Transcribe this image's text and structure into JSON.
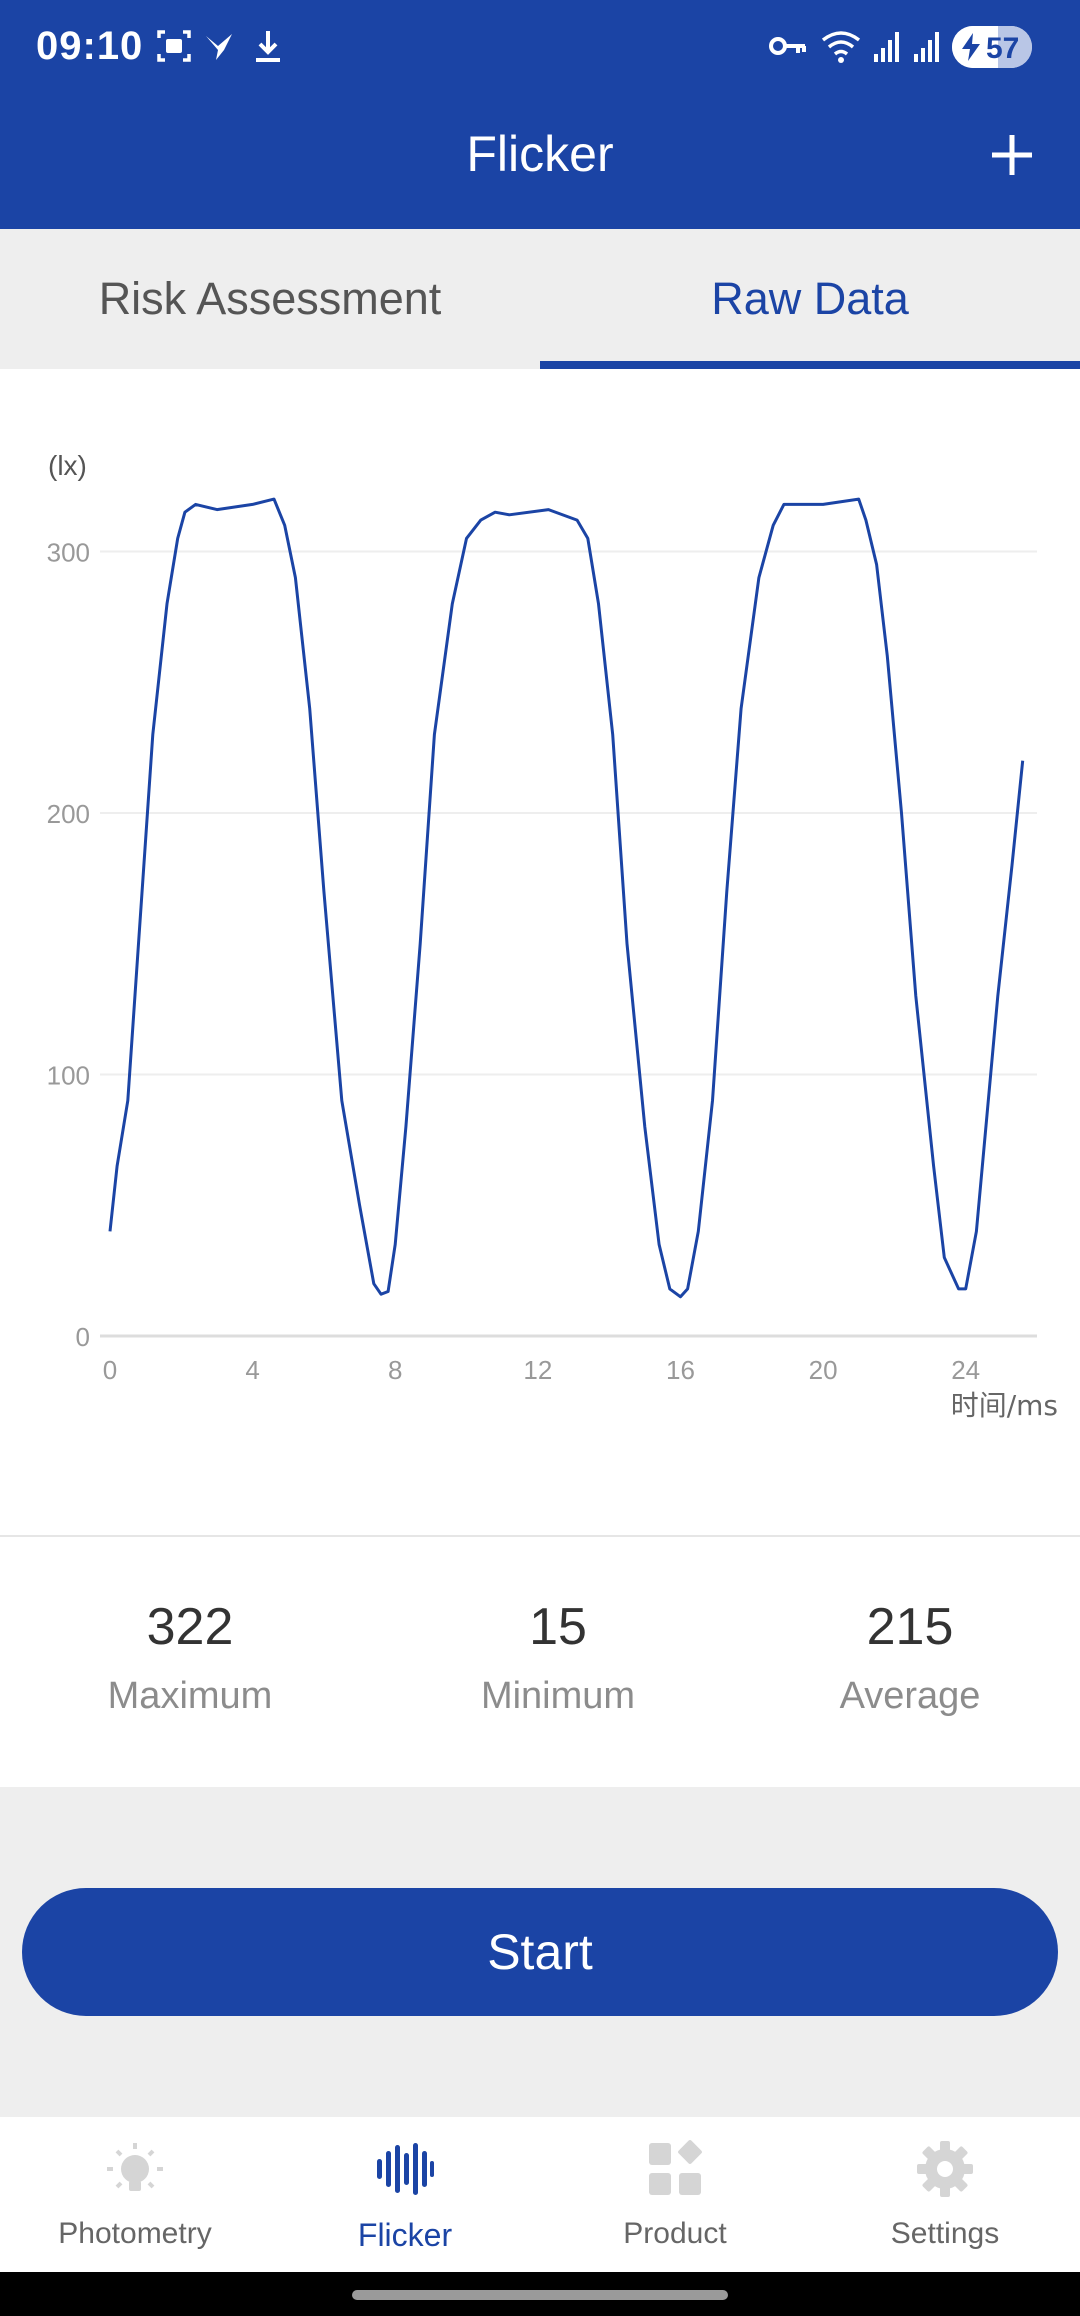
{
  "status_bar": {
    "time": "09:10",
    "battery": "57"
  },
  "app_bar": {
    "title": "Flicker"
  },
  "tabs": [
    {
      "label": "Risk Assessment",
      "active": false
    },
    {
      "label": "Raw Data",
      "active": true
    }
  ],
  "chart_data": {
    "type": "line",
    "ylabel": "(lx)",
    "xlabel": "时间/ms",
    "xlim": [
      0,
      26
    ],
    "ylim": [
      0,
      300
    ],
    "x_ticks": [
      "0",
      "4",
      "8",
      "12",
      "16",
      "20",
      "24"
    ],
    "y_ticks": [
      "0",
      "100",
      "200",
      "300"
    ],
    "grid": true,
    "color": "#1b44a5",
    "series": [
      {
        "x": [
          0,
          0.2,
          0.5,
          0.8,
          1.2,
          1.6,
          1.9,
          2.1,
          2.4,
          3,
          4,
          4.6,
          4.9,
          5.2,
          5.6,
          6,
          6.5,
          7,
          7.4,
          7.6,
          7.8,
          8.0,
          8.3,
          8.7,
          9.1,
          9.6,
          10.0,
          10.4,
          10.8,
          11.2,
          12.3,
          13.1,
          13.4,
          13.7,
          14.1,
          14.5,
          15,
          15.4,
          15.7,
          16,
          16.2,
          16.5,
          16.9,
          17.3,
          17.7,
          18.2,
          18.6,
          18.9,
          19.2,
          20,
          21,
          21.2,
          21.5,
          21.8,
          22.2,
          22.6,
          23.1,
          23.4,
          23.8,
          24.0,
          24.3,
          24.6,
          24.9,
          25.3,
          25.6
        ],
        "y": [
          40,
          65,
          90,
          150,
          230,
          280,
          305,
          315,
          318,
          316,
          318,
          320,
          310,
          290,
          240,
          170,
          90,
          50,
          20,
          16,
          17,
          35,
          80,
          150,
          230,
          280,
          305,
          312,
          315,
          314,
          316,
          312,
          305,
          280,
          230,
          150,
          80,
          35,
          18,
          15,
          18,
          40,
          90,
          170,
          240,
          290,
          310,
          318,
          318,
          318,
          320,
          312,
          295,
          260,
          200,
          130,
          65,
          30,
          18,
          18,
          40,
          85,
          130,
          180,
          220
        ]
      }
    ]
  },
  "stats": [
    {
      "value": "322",
      "label": "Maximum"
    },
    {
      "value": "15",
      "label": "Minimum"
    },
    {
      "value": "215",
      "label": "Average"
    }
  ],
  "actions": {
    "start_label": "Start"
  },
  "bottom_nav": [
    {
      "label": "Photometry",
      "icon": "bulb-icon",
      "active": false
    },
    {
      "label": "Flicker",
      "icon": "waveform-icon",
      "active": true
    },
    {
      "label": "Product",
      "icon": "grid-icon",
      "active": false
    },
    {
      "label": "Settings",
      "icon": "gear-icon",
      "active": false
    }
  ]
}
